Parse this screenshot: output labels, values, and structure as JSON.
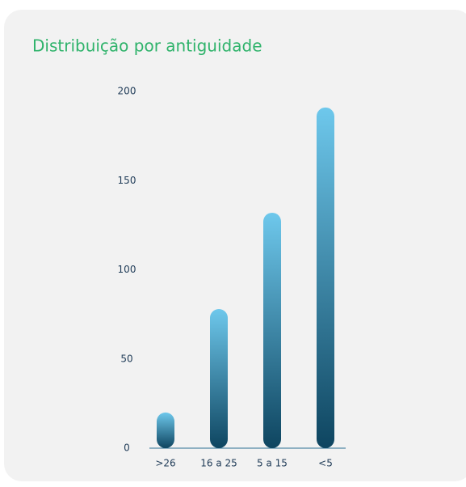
{
  "chart_data": {
    "type": "bar",
    "title": "Distribuição por antiguidade",
    "categories": [
      ">26",
      "16 a 25",
      "5 a 15",
      "<5"
    ],
    "values": [
      20,
      78,
      132,
      191
    ],
    "color": [
      "#6ec8ec",
      "#0e4560"
    ],
    "ylim": [
      0,
      200
    ],
    "yticks": [
      0,
      50,
      100,
      150,
      200
    ],
    "grid": false
  }
}
